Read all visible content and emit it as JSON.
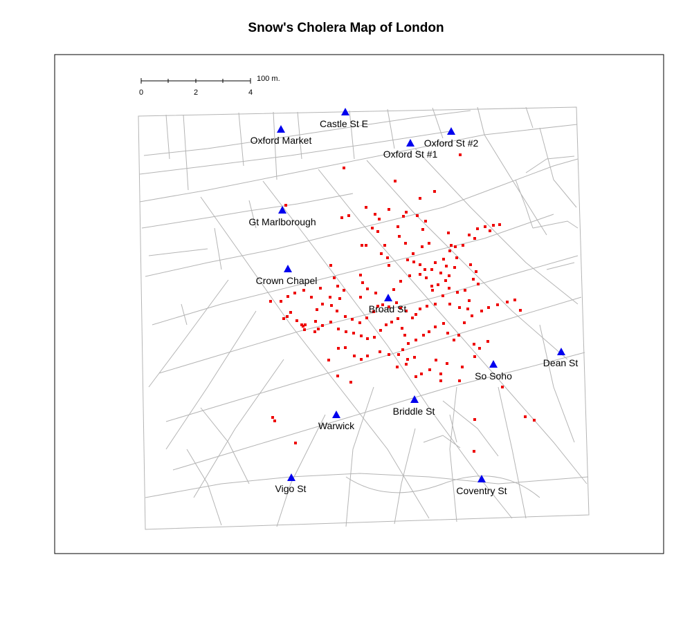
{
  "title": "Snow's Cholera Map of London",
  "colors": {
    "pump": "#0000ee",
    "death": "#ee0000",
    "street": "#b4b4b4",
    "frame": "#000000"
  },
  "scale_bar": {
    "ticks": [
      "0",
      "2",
      "4"
    ],
    "unit_label": "100 m."
  },
  "pumps": [
    {
      "name": "Castle St E",
      "icon": "triangle-icon"
    },
    {
      "name": "Oxford Market",
      "icon": "triangle-icon"
    },
    {
      "name": "Oxford St #2",
      "icon": "triangle-icon"
    },
    {
      "name": "Oxford St #1",
      "icon": "triangle-icon"
    },
    {
      "name": "Gt Marlborough",
      "icon": "triangle-icon"
    },
    {
      "name": "Crown Chapel",
      "icon": "triangle-icon"
    },
    {
      "name": "Broad St",
      "icon": "triangle-icon"
    },
    {
      "name": "Dean St",
      "icon": "triangle-icon"
    },
    {
      "name": "So Soho",
      "icon": "triangle-icon"
    },
    {
      "name": "Briddle St",
      "icon": "triangle-icon"
    },
    {
      "name": "Warwick",
      "icon": "triangle-icon"
    },
    {
      "name": "Vigo St",
      "icon": "triangle-icon"
    },
    {
      "name": "Coventry St",
      "icon": "triangle-icon"
    }
  ]
}
